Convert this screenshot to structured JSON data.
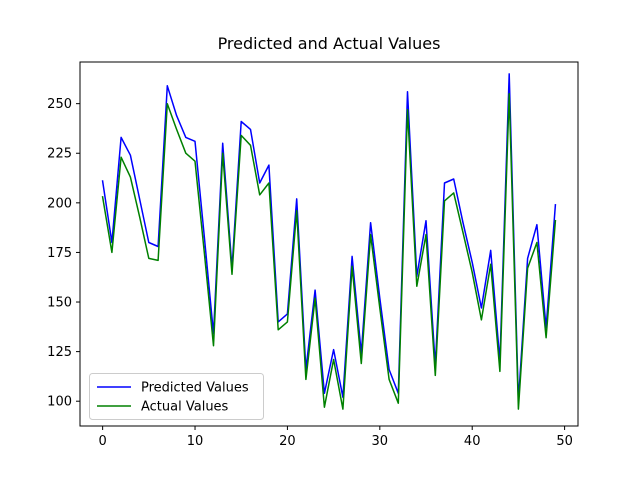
{
  "title": "Predicted and Actual Values",
  "chart_data": {
    "type": "line",
    "x": [
      0,
      1,
      2,
      3,
      4,
      5,
      6,
      7,
      8,
      9,
      10,
      11,
      12,
      13,
      14,
      15,
      16,
      17,
      18,
      19,
      20,
      21,
      22,
      23,
      24,
      25,
      26,
      27,
      28,
      29,
      30,
      31,
      32,
      33,
      34,
      35,
      36,
      37,
      38,
      39,
      40,
      41,
      42,
      43,
      44,
      45,
      46,
      47,
      48,
      49
    ],
    "series": [
      {
        "name": "Predicted Values",
        "color": "#0000ff",
        "values": [
          211,
          180,
          233,
          224,
          202,
          180,
          178,
          259,
          244,
          233,
          231,
          183,
          134,
          230,
          167,
          241,
          237,
          210,
          219,
          140,
          144,
          202,
          116,
          156,
          104,
          126,
          102,
          173,
          124,
          190,
          152,
          116,
          104,
          256,
          163,
          191,
          118,
          210,
          212,
          190,
          170,
          147,
          176,
          120,
          265,
          100,
          172,
          189,
          137,
          199
        ]
      },
      {
        "name": "Actual Values",
        "color": "#008000",
        "values": [
          203,
          175,
          223,
          213,
          193,
          172,
          171,
          250,
          237,
          225,
          221,
          175,
          128,
          225,
          164,
          234,
          229,
          204,
          210,
          136,
          140,
          196,
          111,
          152,
          97,
          121,
          96,
          168,
          119,
          184,
          147,
          111,
          99,
          247,
          158,
          184,
          113,
          201,
          205,
          185,
          165,
          141,
          169,
          115,
          255,
          96,
          167,
          180,
          132,
          191
        ]
      }
    ],
    "xlabel": "",
    "ylabel": "",
    "xlim": [
      -2.45,
      51.45
    ],
    "ylim": [
      87.5,
      271
    ],
    "xticks": [
      0,
      10,
      20,
      30,
      40,
      50
    ],
    "yticks": [
      100,
      125,
      150,
      175,
      200,
      225,
      250
    ],
    "grid": false,
    "legend_position": "lower left"
  },
  "colors": {
    "axis": "#000000",
    "background": "#ffffff",
    "legend_border": "#cccccc"
  }
}
